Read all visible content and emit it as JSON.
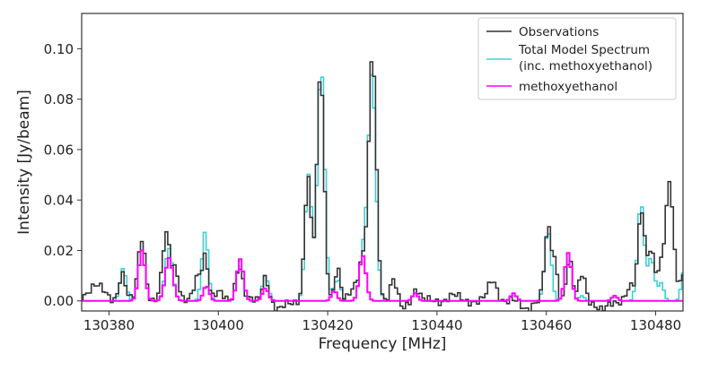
{
  "chart_data": {
    "type": "line",
    "style": "step",
    "xlabel": "Frequency [MHz]",
    "ylabel": "Intensity [Jy/beam]",
    "xlim": [
      130375,
      130485
    ],
    "ylim": [
      -0.004,
      0.114
    ],
    "xticks": [
      130380,
      130400,
      130420,
      130440,
      130460,
      130480
    ],
    "xtick_labels": [
      "130380",
      "130400",
      "130420",
      "130440",
      "130460",
      "130480"
    ],
    "yticks": [
      0.0,
      0.02,
      0.04,
      0.06,
      0.08,
      0.1
    ],
    "ytick_labels": [
      "0.00",
      "0.02",
      "0.04",
      "0.06",
      "0.08",
      "0.10"
    ],
    "channel_width_mhz": 0.5,
    "legend": {
      "placement": "top-right",
      "entries": [
        {
          "label": "Observations",
          "color": "#333333"
        },
        {
          "label": "Total Model Spectrum",
          "label2": "(inc. methoxyethanol)",
          "color": "#3cd0d6"
        },
        {
          "label": "methoxyethanol",
          "color": "#ff00ff"
        }
      ]
    },
    "series": [
      {
        "name": "Observations",
        "color": "#333333",
        "components_center_amp_sigma": [
          [
            130377.5,
            0.0065,
            1.4
          ],
          [
            130382.4,
            0.011,
            0.6
          ],
          [
            130386.0,
            0.025,
            0.65
          ],
          [
            130390.5,
            0.026,
            0.7
          ],
          [
            130392.2,
            0.012,
            0.6
          ],
          [
            130396.2,
            0.009,
            0.6
          ],
          [
            130397.6,
            0.018,
            0.55
          ],
          [
            130400.0,
            0.003,
            0.8
          ],
          [
            130403.8,
            0.014,
            0.65
          ],
          [
            130408.6,
            0.01,
            0.6
          ],
          [
            130411.0,
            -0.004,
            0.9
          ],
          [
            130416.4,
            0.048,
            0.6
          ],
          [
            130418.7,
            0.092,
            0.65
          ],
          [
            130421.8,
            0.012,
            0.5
          ],
          [
            130424.8,
            0.006,
            0.8
          ],
          [
            130426.3,
            0.014,
            0.6
          ],
          [
            130428.2,
            0.098,
            0.7
          ],
          [
            130432.0,
            0.008,
            0.6
          ],
          [
            130433.8,
            -0.003,
            0.6
          ],
          [
            130436.2,
            0.005,
            0.6
          ],
          [
            130443.0,
            0.002,
            1.0
          ],
          [
            130450.2,
            0.008,
            0.8
          ],
          [
            130456.2,
            -0.003,
            0.9
          ],
          [
            130460.3,
            0.028,
            0.6
          ],
          [
            130461.6,
            0.014,
            0.5
          ],
          [
            130464.2,
            0.016,
            0.55
          ],
          [
            130466.6,
            0.011,
            0.6
          ],
          [
            130470.2,
            -0.004,
            1.0
          ],
          [
            130475.4,
            0.005,
            0.8
          ],
          [
            130477.4,
            0.036,
            0.6
          ],
          [
            130479.1,
            0.02,
            0.6
          ],
          [
            130482.6,
            0.045,
            0.7
          ],
          [
            130481.0,
            0.012,
            0.8
          ],
          [
            130484.8,
            0.01,
            0.5
          ]
        ]
      },
      {
        "name": "Total Model Spectrum (inc. methoxyethanol)",
        "color": "#3cd0d6",
        "includes": "methoxyethanol",
        "extra_components_center_amp_sigma": [
          [
            130382.6,
            0.013,
            0.55
          ],
          [
            130390.8,
            0.004,
            0.6
          ],
          [
            130397.5,
            0.022,
            0.55
          ],
          [
            130408.6,
            0.005,
            0.6
          ],
          [
            130416.5,
            0.05,
            0.6
          ],
          [
            130418.8,
            0.093,
            0.65
          ],
          [
            130422.0,
            0.007,
            0.5
          ],
          [
            130428.1,
            0.09,
            0.7
          ],
          [
            130460.3,
            0.028,
            0.6
          ],
          [
            130466.5,
            0.002,
            0.5
          ],
          [
            130477.3,
            0.039,
            0.6
          ],
          [
            130479.2,
            0.017,
            0.6
          ],
          [
            130481.0,
            0.007,
            0.5
          ],
          [
            130485.2,
            0.012,
            0.5
          ]
        ]
      },
      {
        "name": "methoxyethanol",
        "color": "#ff00ff",
        "components_center_amp_sigma": [
          [
            130386.0,
            0.02,
            0.6
          ],
          [
            130391.0,
            0.017,
            0.7
          ],
          [
            130397.8,
            0.006,
            0.55
          ],
          [
            130404.0,
            0.0165,
            0.6
          ],
          [
            130408.6,
            0.005,
            0.55
          ],
          [
            130421.2,
            0.004,
            0.5
          ],
          [
            130426.4,
            0.018,
            0.6
          ],
          [
            130436.0,
            0.003,
            0.5
          ],
          [
            130454.0,
            0.003,
            0.5
          ],
          [
            130464.0,
            0.019,
            0.6
          ],
          [
            130472.5,
            0.002,
            0.5
          ]
        ]
      }
    ]
  }
}
